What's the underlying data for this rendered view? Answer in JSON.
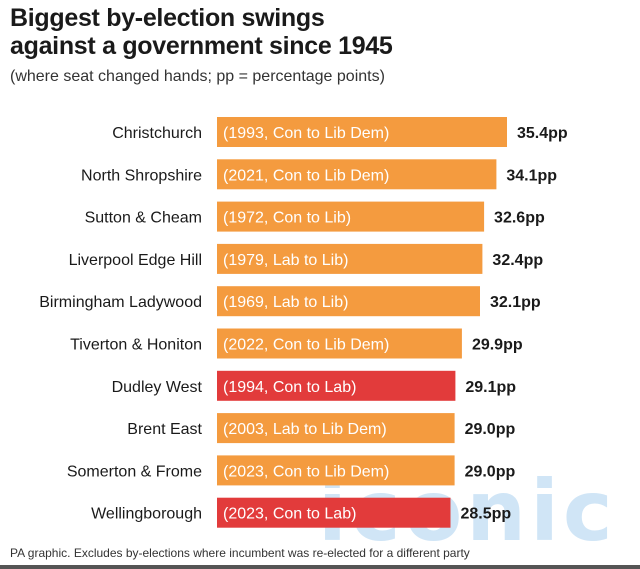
{
  "header": {
    "title_line1": "Biggest by-election swings",
    "title_line2": "against a government since 1945",
    "subtitle": "(where seat changed hands; pp = percentage points)"
  },
  "footer": {
    "note": "PA graphic. Excludes by-elections where incumbent was re-elected for a different party",
    "watermark": "iconic"
  },
  "colors": {
    "orange": "#f49b3f",
    "red": "#e23b3b",
    "bar_text": "#ffffff",
    "label_text": "#1a1a1a"
  },
  "chart_data": {
    "type": "bar",
    "orientation": "horizontal",
    "title": "Biggest by-election swings against a government since 1945",
    "subtitle": "(where seat changed hands; pp = percentage points)",
    "categories": [
      "Christchurch",
      "North Shropshire",
      "Sutton & Cheam",
      "Liverpool Edge Hill",
      "Birmingham Ladywood",
      "Tiverton & Honiton",
      "Dudley West",
      "Brent East",
      "Somerton & Frome",
      "Wellingborough"
    ],
    "annotations": [
      "(1993, Con to Lib Dem)",
      "(2021, Con to Lib Dem)",
      "(1972, Con to Lib)",
      "(1979, Lab to Lib)",
      "(1969, Lab to Lib)",
      "(2022, Con to Lib Dem)",
      "(1994, Con to Lab)",
      "(2003, Lab to Lib Dem)",
      "(2023, Con to Lib Dem)",
      "(2023, Con to Lab)"
    ],
    "values": [
      35.4,
      34.1,
      32.6,
      32.4,
      32.1,
      29.9,
      29.1,
      29.0,
      29.0,
      28.5
    ],
    "value_labels": [
      "35.4pp",
      "34.1pp",
      "32.6pp",
      "32.4pp",
      "32.1pp",
      "29.9pp",
      "29.1pp",
      "29.0pp",
      "29.0pp",
      "28.5pp"
    ],
    "bar_colors": [
      "orange",
      "orange",
      "orange",
      "orange",
      "orange",
      "orange",
      "red",
      "orange",
      "orange",
      "red"
    ],
    "unit": "pp",
    "xlim": [
      0,
      35.4
    ],
    "grid": false,
    "legend": "none"
  }
}
